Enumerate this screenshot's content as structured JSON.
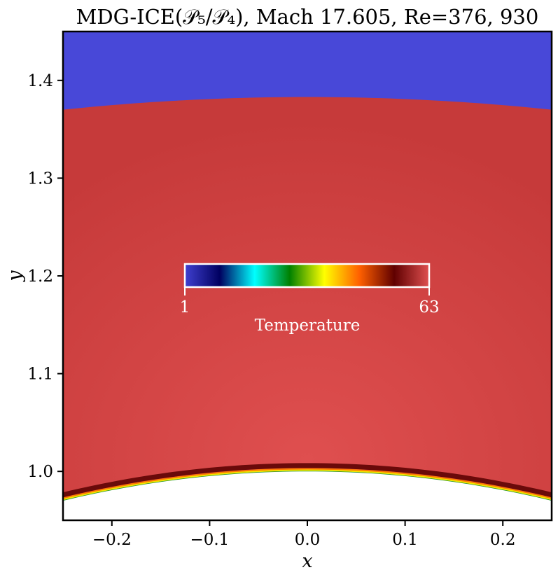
{
  "chart_data": {
    "type": "heatmap",
    "title": "MDG-ICE(𝒫₅/𝒫₄), Mach 17.605, Re=376, 930",
    "xlabel": "x",
    "ylabel": "y",
    "xlim": [
      -0.25,
      0.25
    ],
    "ylim": [
      0.95,
      1.45
    ],
    "x_ticks": [
      {
        "value": -0.2,
        "label": "−0.2"
      },
      {
        "value": -0.1,
        "label": "−0.1"
      },
      {
        "value": 0.0,
        "label": "0.0"
      },
      {
        "value": 0.1,
        "label": "0.1"
      },
      {
        "value": 0.2,
        "label": "0.2"
      }
    ],
    "y_ticks": [
      {
        "value": 1.0,
        "label": "1.0"
      },
      {
        "value": 1.1,
        "label": "1.1"
      },
      {
        "value": 1.2,
        "label": "1.2"
      },
      {
        "value": 1.3,
        "label": "1.3"
      },
      {
        "value": 1.4,
        "label": "1.4"
      }
    ],
    "colorbar": {
      "label": "Temperature",
      "min": 1,
      "max": 63,
      "min_label": "1",
      "max_label": "63",
      "colors": [
        "#4040d0",
        "#000060",
        "#00ffff",
        "#008000",
        "#ffff00",
        "#ff6000",
        "#600000",
        "#e05050"
      ]
    },
    "fields": {
      "freestream_color": "#4848d8",
      "shock_layer_color": "#d24444",
      "shock_edge_y": 1.37,
      "shock_apex_y": 1.383,
      "body_edge_y": 0.97,
      "body_apex_y": 1.0
    }
  }
}
